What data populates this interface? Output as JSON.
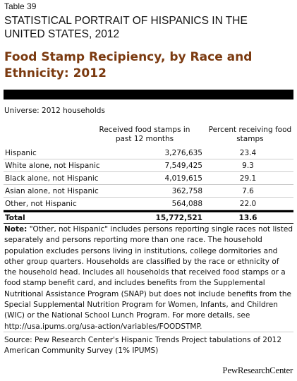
{
  "header": {
    "table_label": "Table 39",
    "super_title": "STATISTICAL PORTRAIT OF HISPANICS IN THE UNITED STATES, 2012",
    "title": "Food Stamp Recipiency, by Race and Ethnicity: 2012"
  },
  "universe": "Universe: 2012 households",
  "table": {
    "columns": [
      "Received food stamps in past 12 months",
      "Percent receiving food stamps"
    ],
    "rows": [
      [
        "Hispanic",
        "3,276,635",
        "23.4"
      ],
      [
        "White alone, not Hispanic",
        "7,549,425",
        "9.3"
      ],
      [
        "Black alone, not Hispanic",
        "4,019,615",
        "29.1"
      ],
      [
        "Asian alone, not Hispanic",
        "362,758",
        "7.6"
      ],
      [
        "Other, not Hispanic",
        "564,088",
        "22.0"
      ]
    ],
    "total": [
      "Total",
      "15,772,521",
      "13.6"
    ]
  },
  "note": {
    "label": "Note:",
    "text": "\"Other, not Hispanic\" includes persons reporting single races not listed separately and persons reporting more than one race. The household population excludes persons living in institutions, college dormitories and other group quarters. Households are classified by the race or ethnicity of the household head. Includes all households that received food stamps or a food stamp benefit card, and includes benefits from the Supplemental Nutritional Assistance Program (SNAP) but does not include benefits from the Special Supplemental Nutrition Program for Women, Infants, and Children (WIC) or the National School Lunch Program.  For more details, see http://usa.ipums.org/usa-action/variables/FOODSTMP."
  },
  "source": "Source: Pew Research Center's Hispanic Trends Project tabulations of 2012 American Community Survey (1% IPUMS)",
  "logo": "PewResearchCenter"
}
